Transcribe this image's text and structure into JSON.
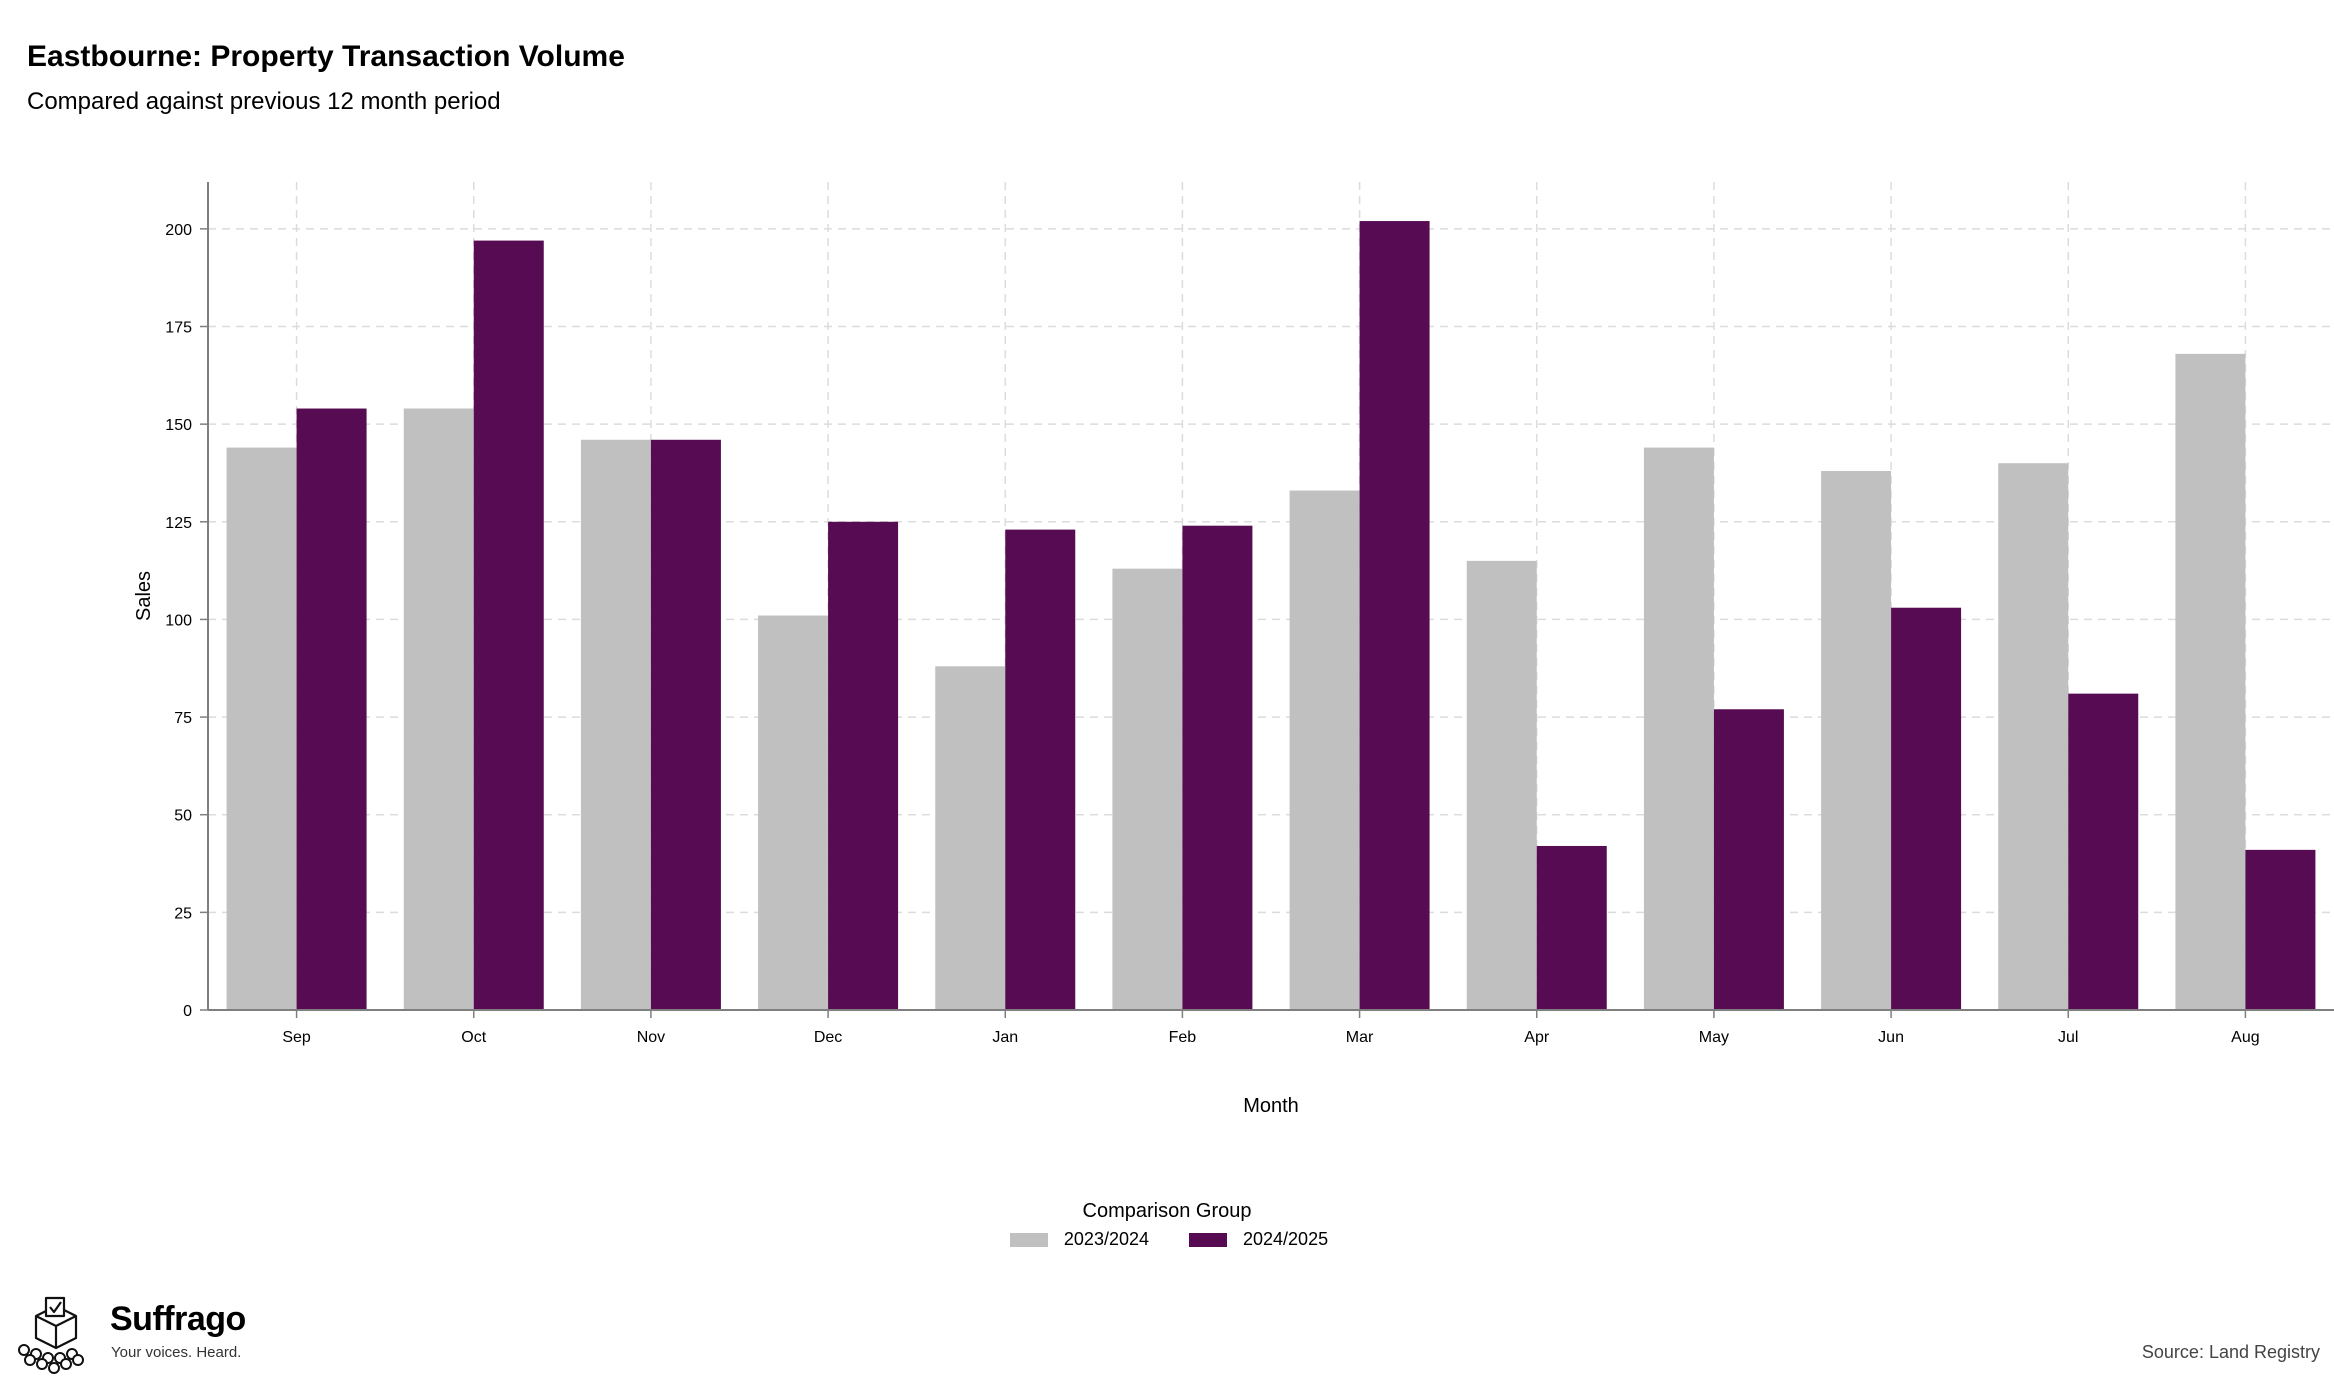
{
  "title": "Eastbourne: Property Transaction Volume",
  "subtitle": "Compared against previous 12 month period",
  "source": "Source: Land Registry",
  "brand": {
    "name": "Suffrago",
    "tagline": "Your voices. Heard.",
    "logo_icon": "ballot-box-crowd-icon"
  },
  "colors": {
    "series_2023_2024": "#c0c0c0",
    "series_2024_2025": "#570b52",
    "grid": "#dcdcdc",
    "axis": "#7f7f7f"
  },
  "legend": {
    "title": "Comparison Group",
    "placement": "bottom-center"
  },
  "chart_data": {
    "type": "bar",
    "xlabel": "Month",
    "ylabel": "Sales",
    "categories": [
      "Sep",
      "Oct",
      "Nov",
      "Dec",
      "Jan",
      "Feb",
      "Mar",
      "Apr",
      "May",
      "Jun",
      "Jul",
      "Aug"
    ],
    "series": [
      {
        "name": "2023/2024",
        "color": "#c0c0c0",
        "values": [
          144,
          154,
          146,
          101,
          88,
          113,
          133,
          115,
          144,
          138,
          140,
          168
        ]
      },
      {
        "name": "2024/2025",
        "color": "#570b52",
        "values": [
          154,
          197,
          146,
          125,
          123,
          124,
          202,
          42,
          77,
          103,
          81,
          41
        ]
      }
    ],
    "yticks": [
      0,
      25,
      50,
      75,
      100,
      125,
      150,
      175,
      200
    ],
    "ylim": [
      0,
      212
    ],
    "grid": true
  }
}
